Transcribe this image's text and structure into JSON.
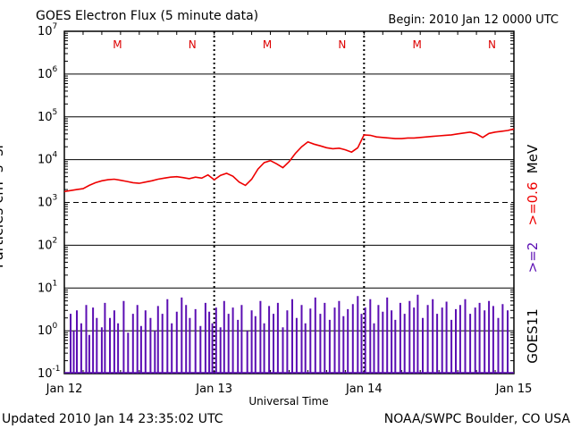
{
  "title": "GOES Electron Flux (5 minute data)",
  "begin": "Begin: 2010 Jan 12 0000 UTC",
  "updated": "Updated 2010 Jan 14 23:35:02 UTC",
  "source": "NOAA/SWPC Boulder, CO USA",
  "satellite": "GOES11",
  "energy_low": ">=0.6",
  "energy_high": ">=2",
  "energy_unit": "MeV",
  "chart_data": {
    "type": "line",
    "title": "GOES Electron Flux (5 minute data)",
    "xlabel": "Universal Time",
    "ylabel": "Particles cm-2 s-1 sr-1",
    "yscale": "log",
    "ylim": [
      0.1,
      10000000
    ],
    "xlim_hours": [
      0,
      72
    ],
    "x_ticks": [
      {
        "label": "Jan 12",
        "hour": 0
      },
      {
        "label": "Jan 13",
        "hour": 24
      },
      {
        "label": "Jan 14",
        "hour": 48
      },
      {
        "label": "Jan 15",
        "hour": 72
      }
    ],
    "y_ticks": [
      {
        "base": "10",
        "exp": "-1",
        "value": 0.1
      },
      {
        "base": "10",
        "exp": "0",
        "value": 1
      },
      {
        "base": "10",
        "exp": "1",
        "value": 10
      },
      {
        "base": "10",
        "exp": "2",
        "value": 100
      },
      {
        "base": "10",
        "exp": "3",
        "value": 1000
      },
      {
        "base": "10",
        "exp": "4",
        "value": 10000
      },
      {
        "base": "10",
        "exp": "5",
        "value": 100000
      },
      {
        "base": "10",
        "exp": "6",
        "value": 1000000
      },
      {
        "base": "10",
        "exp": "7",
        "value": 10000000
      }
    ],
    "alert_threshold": 1000,
    "markers": [
      {
        "label": "M",
        "hour": 8.5
      },
      {
        "label": "N",
        "hour": 20.5
      },
      {
        "label": "M",
        "hour": 32.5
      },
      {
        "label": "N",
        "hour": 44.5
      },
      {
        "label": "M",
        "hour": 56.5
      },
      {
        "label": "N",
        "hour": 68.5
      }
    ],
    "series": [
      {
        "name": ">=0.6 MeV",
        "color": "#ee0000",
        "x": [
          0,
          1,
          2,
          3,
          4,
          5,
          6,
          7,
          8,
          9,
          10,
          11,
          12,
          13,
          14,
          15,
          16,
          17,
          18,
          19,
          20,
          21,
          22,
          23,
          24,
          25,
          26,
          27,
          28,
          29,
          30,
          31,
          32,
          33,
          34,
          35,
          36,
          37,
          38,
          39,
          40,
          41,
          42,
          43,
          44,
          45,
          46,
          47,
          48,
          49,
          50,
          51,
          52,
          53,
          54,
          55,
          56,
          57,
          58,
          59,
          60,
          61,
          62,
          63,
          64,
          65,
          66,
          67,
          68,
          69,
          70,
          71,
          72
        ],
        "values": [
          1800,
          1900,
          2000,
          2100,
          2500,
          2900,
          3200,
          3400,
          3500,
          3300,
          3100,
          2900,
          2800,
          3000,
          3200,
          3500,
          3700,
          3900,
          4000,
          3800,
          3600,
          3900,
          3700,
          4400,
          3400,
          4300,
          4800,
          4100,
          3000,
          2500,
          3500,
          6000,
          8500,
          9500,
          8000,
          6500,
          9000,
          14000,
          20000,
          26000,
          23000,
          21000,
          19000,
          18000,
          18500,
          17000,
          15000,
          19000,
          38000,
          37000,
          34000,
          33000,
          32000,
          31000,
          31000,
          32000,
          32000,
          33000,
          34000,
          35000,
          36000,
          37000,
          38000,
          40000,
          42000,
          44000,
          40000,
          33000,
          41000,
          44000,
          46000,
          48000,
          52000
        ]
      },
      {
        "name": ">=2 MeV",
        "color": "#5b0eb3",
        "style": "spikes",
        "baseline": 0.1,
        "x": [
          1,
          1.5,
          2,
          2.7,
          3.5,
          4,
          4.6,
          5.2,
          6,
          6.5,
          7.3,
          8,
          8.6,
          9.5,
          10.2,
          11,
          11.7,
          12.3,
          13,
          13.8,
          14.5,
          15,
          15.7,
          16.5,
          17.2,
          18,
          18.8,
          19.5,
          20.1,
          21,
          21.8,
          22.6,
          23.2,
          23.7,
          24.3,
          25,
          25.6,
          26.3,
          27,
          27.8,
          28.4,
          29.3,
          30,
          30.6,
          31.4,
          32,
          32.8,
          33.5,
          34.2,
          35,
          35.7,
          36.5,
          37.2,
          38,
          38.6,
          39.4,
          40.2,
          41,
          41.7,
          42.5,
          43.3,
          44,
          44.7,
          45.4,
          46.2,
          47,
          47.6,
          48.2,
          49,
          49.6,
          50.3,
          51,
          51.7,
          52.4,
          53,
          53.8,
          54.5,
          55.3,
          56,
          56.6,
          57.4,
          58.2,
          59,
          59.7,
          60.5,
          61.2,
          62,
          62.7,
          63.4,
          64.2,
          65,
          65.8,
          66.5,
          67.3,
          68,
          68.7,
          69.5,
          70.2,
          71
        ],
        "values": [
          2.5,
          1,
          3,
          1.5,
          4,
          0.8,
          3.5,
          2,
          1.2,
          4.5,
          2,
          3,
          1.5,
          5,
          0.9,
          2.5,
          4,
          1.3,
          3,
          2,
          1,
          3.8,
          2.5,
          5.5,
          1.5,
          2.8,
          6,
          4,
          2,
          3.2,
          1.3,
          4.5,
          2.8,
          1.5,
          3.5,
          1.2,
          5,
          2.5,
          3.5,
          1.8,
          4,
          1,
          3,
          2.2,
          5,
          1.5,
          3.8,
          2.5,
          4.5,
          1.2,
          3,
          5.5,
          2,
          4,
          1.5,
          3.3,
          6,
          2.5,
          4.5,
          1.8,
          3.5,
          5,
          2.2,
          3.2,
          4.2,
          6.5,
          2.5,
          3.5,
          5.5,
          1.5,
          4,
          2.8,
          6,
          3,
          1.8,
          4.5,
          2.5,
          5,
          3.5,
          7,
          2,
          4,
          5.5,
          2.5,
          3.5,
          4.8,
          1.8,
          3.2,
          4,
          5.5,
          2.5,
          3.5,
          4.5,
          3,
          5,
          3.8,
          2,
          4.2,
          3
        ]
      }
    ]
  }
}
